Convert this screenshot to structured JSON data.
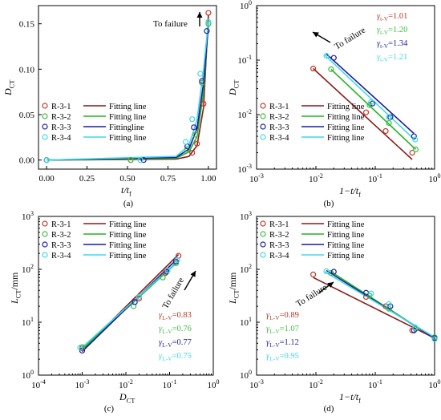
{
  "chart_data": [
    {
      "panel": "(a)",
      "type": "scatter",
      "xlabel": "t/t",
      "xlabel_sub": "f",
      "ylabel": "D",
      "ylabel_sub": "CT",
      "xlim": [
        -0.05,
        1.05
      ],
      "ylim": [
        -0.01,
        0.17
      ],
      "xscale": "linear",
      "yscale": "linear",
      "xticks": [
        "0.00",
        "0.25",
        "0.50",
        "0.75",
        "1.00"
      ],
      "yticks": [
        "0.00",
        "0.05",
        "0.10",
        "0.15"
      ],
      "grid": false,
      "legend_position": "bottom-left",
      "annotation": "To failure",
      "series": [
        {
          "name": "R-3-1",
          "color": "#c0392b",
          "points": [
            [
              0.0,
              0.0
            ],
            [
              0.52,
              0.0
            ],
            [
              0.9,
              0.008
            ],
            [
              0.93,
              0.018
            ],
            [
              0.97,
              0.062
            ],
            [
              1.0,
              0.162
            ]
          ]
        },
        {
          "name": "R-3-2",
          "color": "#3fbf3f",
          "points": [
            [
              0.0,
              0.0
            ],
            [
              0.52,
              0.0
            ],
            [
              0.87,
              0.012
            ],
            [
              0.92,
              0.028
            ],
            [
              0.96,
              0.085
            ],
            [
              1.0,
              0.15
            ]
          ]
        },
        {
          "name": "R-3-3",
          "color": "#1f1fa8",
          "points": [
            [
              0.0,
              0.0
            ],
            [
              0.6,
              0.0
            ],
            [
              0.87,
              0.015
            ],
            [
              0.91,
              0.036
            ],
            [
              0.96,
              0.087
            ],
            [
              0.99,
              0.142
            ]
          ]
        },
        {
          "name": "R-3-4",
          "color": "#3fd9e8",
          "points": [
            [
              0.0,
              0.0
            ],
            [
              0.58,
              0.0
            ],
            [
              0.86,
              0.02
            ],
            [
              0.9,
              0.045
            ],
            [
              0.95,
              0.095
            ],
            [
              1.0,
              0.152
            ]
          ]
        }
      ],
      "fits": [
        {
          "name": "Fitting line",
          "color": "#8b1a1a",
          "points": [
            [
              0.0,
              0.0
            ],
            [
              0.8,
              0.001
            ],
            [
              0.88,
              0.004
            ],
            [
              0.93,
              0.016
            ],
            [
              0.97,
              0.058
            ],
            [
              1.0,
              0.16
            ]
          ]
        },
        {
          "name": "Fitting line",
          "color": "#22b322",
          "points": [
            [
              0.0,
              0.0
            ],
            [
              0.8,
              0.002
            ],
            [
              0.88,
              0.009
            ],
            [
              0.93,
              0.026
            ],
            [
              0.97,
              0.075
            ],
            [
              1.0,
              0.152
            ]
          ]
        },
        {
          "name": "Fittingline",
          "color": "#1a1aa0",
          "points": [
            [
              0.0,
              0.0
            ],
            [
              0.8,
              0.003
            ],
            [
              0.88,
              0.012
            ],
            [
              0.93,
              0.035
            ],
            [
              0.97,
              0.085
            ],
            [
              1.0,
              0.148
            ]
          ]
        },
        {
          "name": "Fitting line",
          "color": "#3fd9e8",
          "points": [
            [
              0.0,
              0.0
            ],
            [
              0.8,
              0.004
            ],
            [
              0.88,
              0.016
            ],
            [
              0.93,
              0.045
            ],
            [
              0.97,
              0.1
            ],
            [
              1.0,
              0.153
            ]
          ]
        }
      ]
    },
    {
      "panel": "(b)",
      "type": "scatter",
      "xlabel": "1−t/t",
      "xlabel_sub": "f",
      "ylabel": "D",
      "ylabel_sub": "CT",
      "xlim_log": [
        -3,
        0
      ],
      "ylim_log": [
        -3,
        0
      ],
      "xscale": "log",
      "yscale": "log",
      "xticks": [
        "10",
        "10",
        "10",
        "10"
      ],
      "xticks_exp": [
        "-3",
        "-2",
        "-1",
        "0"
      ],
      "yticks": [
        "10",
        "10",
        "10",
        "10"
      ],
      "yticks_exp": [
        "-3",
        "-2",
        "-1",
        "0"
      ],
      "legend_position": "bottom-left",
      "annotation": "To failure",
      "gammas": [
        {
          "label": "γ",
          "sub": "t-V",
          "value": "=1.01",
          "color": "#b03a2e"
        },
        {
          "label": "γ",
          "sub": "t-V",
          "value": "=1.20",
          "color": "#3fbf3f"
        },
        {
          "label": "γ",
          "sub": "t-V",
          "value": "=1.34",
          "color": "#1f1fa8"
        },
        {
          "label": "γ",
          "sub": "t-V",
          "value": "=1.21",
          "color": "#3fd9e8"
        }
      ],
      "series": [
        {
          "name": "R-3-1",
          "color": "#c0392b",
          "points": [
            [
              0.009,
              0.07
            ],
            [
              0.07,
              0.011
            ],
            [
              0.15,
              0.005
            ],
            [
              0.42,
              0.002
            ]
          ]
        },
        {
          "name": "R-3-2",
          "color": "#3fbf3f",
          "points": [
            [
              0.018,
              0.068
            ],
            [
              0.08,
              0.015
            ],
            [
              0.17,
              0.007
            ],
            [
              0.48,
              0.0023
            ]
          ]
        },
        {
          "name": "R-3-3",
          "color": "#1f1fa8",
          "points": [
            [
              0.02,
              0.11
            ],
            [
              0.09,
              0.016
            ],
            [
              0.18,
              0.009
            ],
            [
              0.45,
              0.004
            ]
          ]
        },
        {
          "name": "R-3-4",
          "color": "#3fd9e8",
          "points": [
            [
              0.015,
              0.12
            ],
            [
              0.085,
              0.017
            ],
            [
              0.17,
              0.009
            ],
            [
              0.47,
              0.0035
            ]
          ]
        }
      ],
      "fits": [
        {
          "name": "Fitting line",
          "color": "#8b1a1a",
          "points": [
            [
              0.009,
              0.07
            ],
            [
              0.42,
              0.0015
            ]
          ]
        },
        {
          "name": "Fitting line",
          "color": "#22b322",
          "points": [
            [
              0.018,
              0.068
            ],
            [
              0.48,
              0.0023
            ]
          ]
        },
        {
          "name": "Fitting line",
          "color": "#1a1aa0",
          "points": [
            [
              0.015,
              0.13
            ],
            [
              0.45,
              0.0045
            ]
          ]
        },
        {
          "name": "Fitting line",
          "color": "#3fd9e8",
          "points": [
            [
              0.014,
              0.125
            ],
            [
              0.47,
              0.0034
            ]
          ]
        }
      ]
    },
    {
      "panel": "(c)",
      "type": "scatter",
      "xlabel": "D",
      "xlabel_sub": "CT",
      "ylabel": "L",
      "ylabel_sub": "CT",
      "ylabel_unit": "/mm",
      "xlim_log": [
        -4,
        0
      ],
      "ylim_log": [
        0,
        3
      ],
      "xscale": "log",
      "yscale": "log",
      "xticks": [
        "10",
        "10",
        "10",
        "10",
        "10"
      ],
      "xticks_exp": [
        "-4",
        "-3",
        "-2",
        "-1",
        "0"
      ],
      "yticks": [
        "10",
        "10",
        "10",
        "10"
      ],
      "yticks_exp": [
        "0",
        "1",
        "2",
        "3"
      ],
      "legend_position": "top-left",
      "annotation": "To failure",
      "gammas": [
        {
          "label": "γ",
          "sub": "L-V",
          "value": "=0.83",
          "color": "#b03a2e"
        },
        {
          "label": "γ",
          "sub": "L-V",
          "value": "=0.76",
          "color": "#3fbf3f"
        },
        {
          "label": "γ",
          "sub": "L-V",
          "value": "=0.77",
          "color": "#1f1fa8"
        },
        {
          "label": "γ",
          "sub": "L-V",
          "value": "=0.75",
          "color": "#3fd9e8"
        }
      ],
      "series": [
        {
          "name": "R-3-1",
          "color": "#c0392b",
          "points": [
            [
              0.001,
              3.2
            ],
            [
              0.02,
              28
            ],
            [
              0.08,
              85
            ],
            [
              0.16,
              180
            ]
          ]
        },
        {
          "name": "R-3-2",
          "color": "#3fbf3f",
          "points": [
            [
              0.001,
              3.4
            ],
            [
              0.015,
              20
            ],
            [
              0.07,
              70
            ],
            [
              0.14,
              130
            ]
          ]
        },
        {
          "name": "R-3-3",
          "color": "#1f1fa8",
          "points": [
            [
              0.001,
              2.9
            ],
            [
              0.016,
              24
            ],
            [
              0.085,
              90
            ],
            [
              0.14,
              140
            ]
          ]
        },
        {
          "name": "R-3-4",
          "color": "#3fd9e8",
          "points": [
            [
              0.0009,
              3.3
            ],
            [
              0.02,
              30
            ],
            [
              0.09,
              95
            ],
            [
              0.15,
              150
            ]
          ]
        }
      ],
      "fits": [
        {
          "name": "Fitting line",
          "color": "#8b1a1a",
          "points": [
            [
              0.001,
              3.0
            ],
            [
              0.16,
              190
            ]
          ]
        },
        {
          "name": "Fitting line",
          "color": "#22b322",
          "points": [
            [
              0.001,
              3.1
            ],
            [
              0.14,
              130
            ]
          ]
        },
        {
          "name": "Fitting line",
          "color": "#1a1aa0",
          "points": [
            [
              0.001,
              2.8
            ],
            [
              0.14,
              150
            ]
          ]
        },
        {
          "name": "Fitting line",
          "color": "#3fd9e8",
          "points": [
            [
              0.0009,
              3.1
            ],
            [
              0.15,
              140
            ]
          ]
        }
      ]
    },
    {
      "panel": "(d)",
      "type": "scatter",
      "xlabel": "1−t/t",
      "xlabel_sub": "f",
      "ylabel": "L",
      "ylabel_sub": "CT",
      "ylabel_unit": "/mm",
      "xlim_log": [
        -3,
        0
      ],
      "ylim_log": [
        0,
        3
      ],
      "xscale": "log",
      "yscale": "log",
      "xticks": [
        "10",
        "10",
        "10",
        "10"
      ],
      "xticks_exp": [
        "-3",
        "-2",
        "-1",
        "0"
      ],
      "yticks": [
        "10",
        "10",
        "10",
        "10"
      ],
      "yticks_exp": [
        "0",
        "1",
        "2",
        "3"
      ],
      "legend_position": "top-left",
      "annotation": "To failure",
      "gammas": [
        {
          "label": "γ",
          "sub": "L-V",
          "value": "=0.89",
          "color": "#b03a2e"
        },
        {
          "label": "γ",
          "sub": "L-V",
          "value": "=1.07",
          "color": "#3fbf3f"
        },
        {
          "label": "γ",
          "sub": "L-V",
          "value": "=1.12",
          "color": "#1f1fa8"
        },
        {
          "label": "γ",
          "sub": "L-V",
          "value": "=0.95",
          "color": "#3fd9e8"
        }
      ],
      "series": [
        {
          "name": "R-3-1",
          "color": "#c0392b",
          "points": [
            [
              0.009,
              80
            ],
            [
              0.07,
              30
            ],
            [
              0.15,
              20
            ],
            [
              0.42,
              7
            ],
            [
              1.0,
              5
            ]
          ]
        },
        {
          "name": "R-3-2",
          "color": "#3fbf3f",
          "points": [
            [
              0.018,
              85
            ],
            [
              0.08,
              32
            ],
            [
              0.17,
              18
            ],
            [
              0.48,
              7.5
            ],
            [
              1.0,
              5.2
            ]
          ]
        },
        {
          "name": "R-3-3",
          "color": "#1f1fa8",
          "points": [
            [
              0.02,
              90
            ],
            [
              0.07,
              36
            ],
            [
              0.18,
              20
            ],
            [
              0.45,
              7
            ],
            [
              1.0,
              5
            ]
          ]
        },
        {
          "name": "R-3-4",
          "color": "#3fd9e8",
          "points": [
            [
              0.015,
              92
            ],
            [
              0.085,
              35
            ],
            [
              0.17,
              22
            ],
            [
              0.47,
              8
            ],
            [
              1.0,
              4.8
            ]
          ]
        }
      ],
      "fits": [
        {
          "name": "Fitting line",
          "color": "#8b1a1a",
          "points": [
            [
              0.009,
              70
            ],
            [
              1.0,
              5
            ]
          ]
        },
        {
          "name": "Fitting line",
          "color": "#22b322",
          "points": [
            [
              0.018,
              90
            ],
            [
              1.0,
              5
            ]
          ]
        },
        {
          "name": "Fitting line",
          "color": "#1a1aa0",
          "points": [
            [
              0.015,
              95
            ],
            [
              1.0,
              5
            ]
          ]
        },
        {
          "name": "Fitting line",
          "color": "#3fd9e8",
          "points": [
            [
              0.014,
              90
            ],
            [
              1.0,
              5.2
            ]
          ]
        }
      ]
    }
  ]
}
